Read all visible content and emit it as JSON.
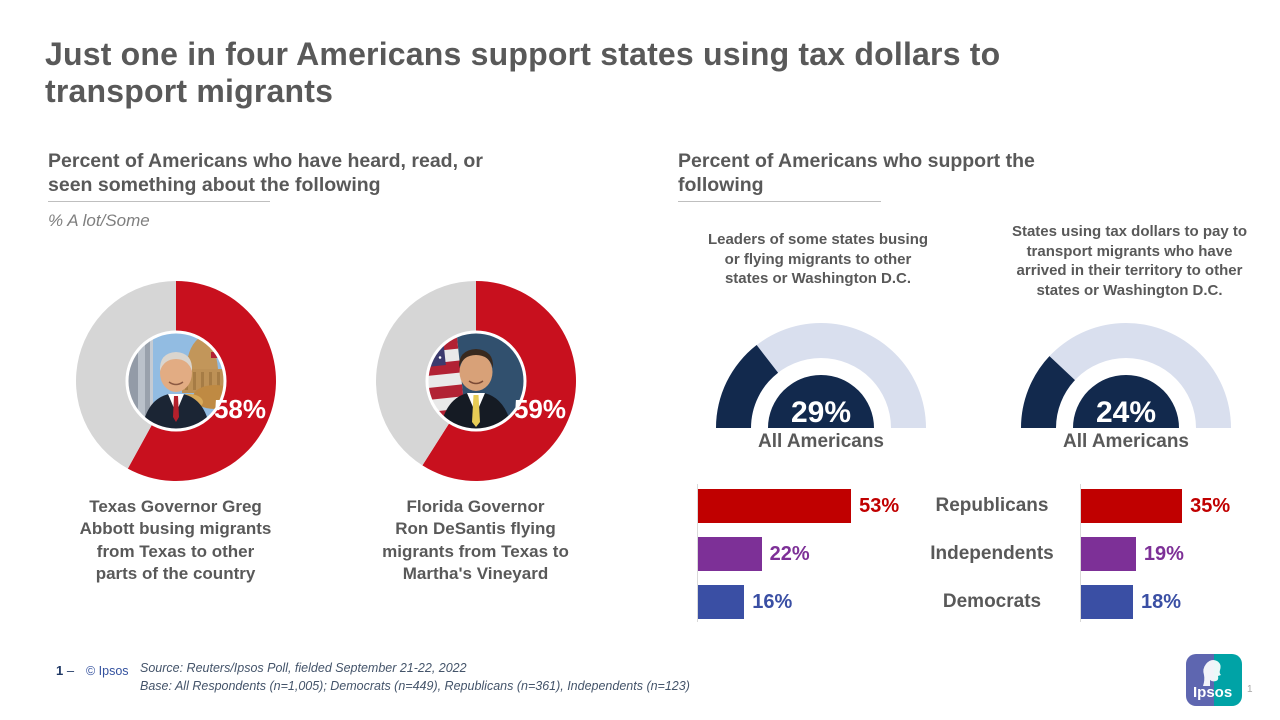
{
  "colors": {
    "donut_fill": "#C8101E",
    "donut_rest": "#D6D6D6",
    "gauge_fill": "#12294D",
    "gauge_track": "#D9DFEE",
    "heading_gray": "#595959"
  },
  "slide": {
    "title_lines": [
      "Just one in four Americans support states using tax dollars to",
      "transport migrants"
    ]
  },
  "left_section": {
    "header_lines": [
      "Percent of Americans who have heard, read, or",
      "seen something about the following"
    ],
    "subnote": "% A lot/Some",
    "donuts": [
      {
        "photo": "greg-abbott",
        "value": 58,
        "label": "58%",
        "caption_lines": [
          "Texas Governor Greg",
          "Abbott busing migrants",
          "from Texas to other",
          "parts of the country"
        ]
      },
      {
        "photo": "ron-desantis",
        "value": 59,
        "label": "59%",
        "caption_lines": [
          "Florida Governor",
          "Ron DeSantis flying",
          "migrants from Texas to",
          "Martha's Vineyard"
        ]
      }
    ]
  },
  "right_section": {
    "header_lines": [
      "Percent of Americans who support the",
      "following"
    ],
    "gauges": [
      {
        "question_lines": [
          "Leaders of some states busing",
          "or flying migrants to other",
          "states or Washington D.C."
        ],
        "value": 29,
        "label": "29%",
        "sublabel": "All Americans"
      },
      {
        "question_lines": [
          "States using tax dollars to pay to",
          "transport migrants who have",
          "arrived in their territory to other",
          "states or Washington D.C."
        ],
        "value": 24,
        "label": "24%",
        "sublabel": "All Americans"
      }
    ],
    "party_rows": [
      {
        "party": "Republicans",
        "color": "#C00000",
        "left_value": 53,
        "left_label": "53%",
        "right_value": 35,
        "right_label": "35%"
      },
      {
        "party": "Independents",
        "color": "#7D3097",
        "left_value": 22,
        "left_label": "22%",
        "right_value": 19,
        "right_label": "19%"
      },
      {
        "party": "Democrats",
        "color": "#3A4FA4",
        "left_value": 16,
        "left_label": "16%",
        "right_value": 18,
        "right_label": "18%"
      }
    ]
  },
  "footer": {
    "page_marker": "1",
    "dash": "‒",
    "copyright": "© Ipsos",
    "source_line1": "Source: Reuters/Ipsos Poll, fielded September 21-22,  2022",
    "source_line2": "Base: All Respondents  (n=1,005);  Democrats (n=449),  Republicans (n=361),  Independents (n=123)",
    "logo_text": "Ipsos",
    "page_number": "1"
  },
  "chart_data": [
    {
      "type": "pie",
      "variant": "donut",
      "title": "Percent of Americans who have heard, read, or seen something about the following",
      "subtitle": "% A lot/Some",
      "categories": [
        "Texas Governor Greg Abbott busing migrants from Texas to other parts of the country",
        "Florida Governor Ron DeSantis flying migrants from Texas to Martha's Vineyard"
      ],
      "values": [
        58,
        59
      ],
      "unit": "%"
    },
    {
      "type": "pie",
      "variant": "half-gauge",
      "title": "Percent of Americans who support the following (All Americans)",
      "categories": [
        "Leaders of some states busing or flying migrants to other states or Washington D.C.",
        "States using tax dollars to pay to transport migrants who have arrived in their territory to other states or Washington D.C."
      ],
      "values": [
        29,
        24
      ],
      "unit": "%"
    },
    {
      "type": "bar",
      "orientation": "horizontal",
      "title": "Support by party",
      "categories": [
        "Republicans",
        "Independents",
        "Democrats"
      ],
      "series": [
        {
          "name": "Leaders of some states busing or flying migrants to other states or Washington D.C.",
          "values": [
            53,
            22,
            16
          ]
        },
        {
          "name": "States using tax dollars to pay to transport migrants who have arrived in their territory to other states or Washington D.C.",
          "values": [
            35,
            19,
            18
          ]
        }
      ],
      "unit": "%",
      "xlim": [
        0,
        60
      ],
      "grid": false,
      "legend_position": "center-labels"
    }
  ]
}
